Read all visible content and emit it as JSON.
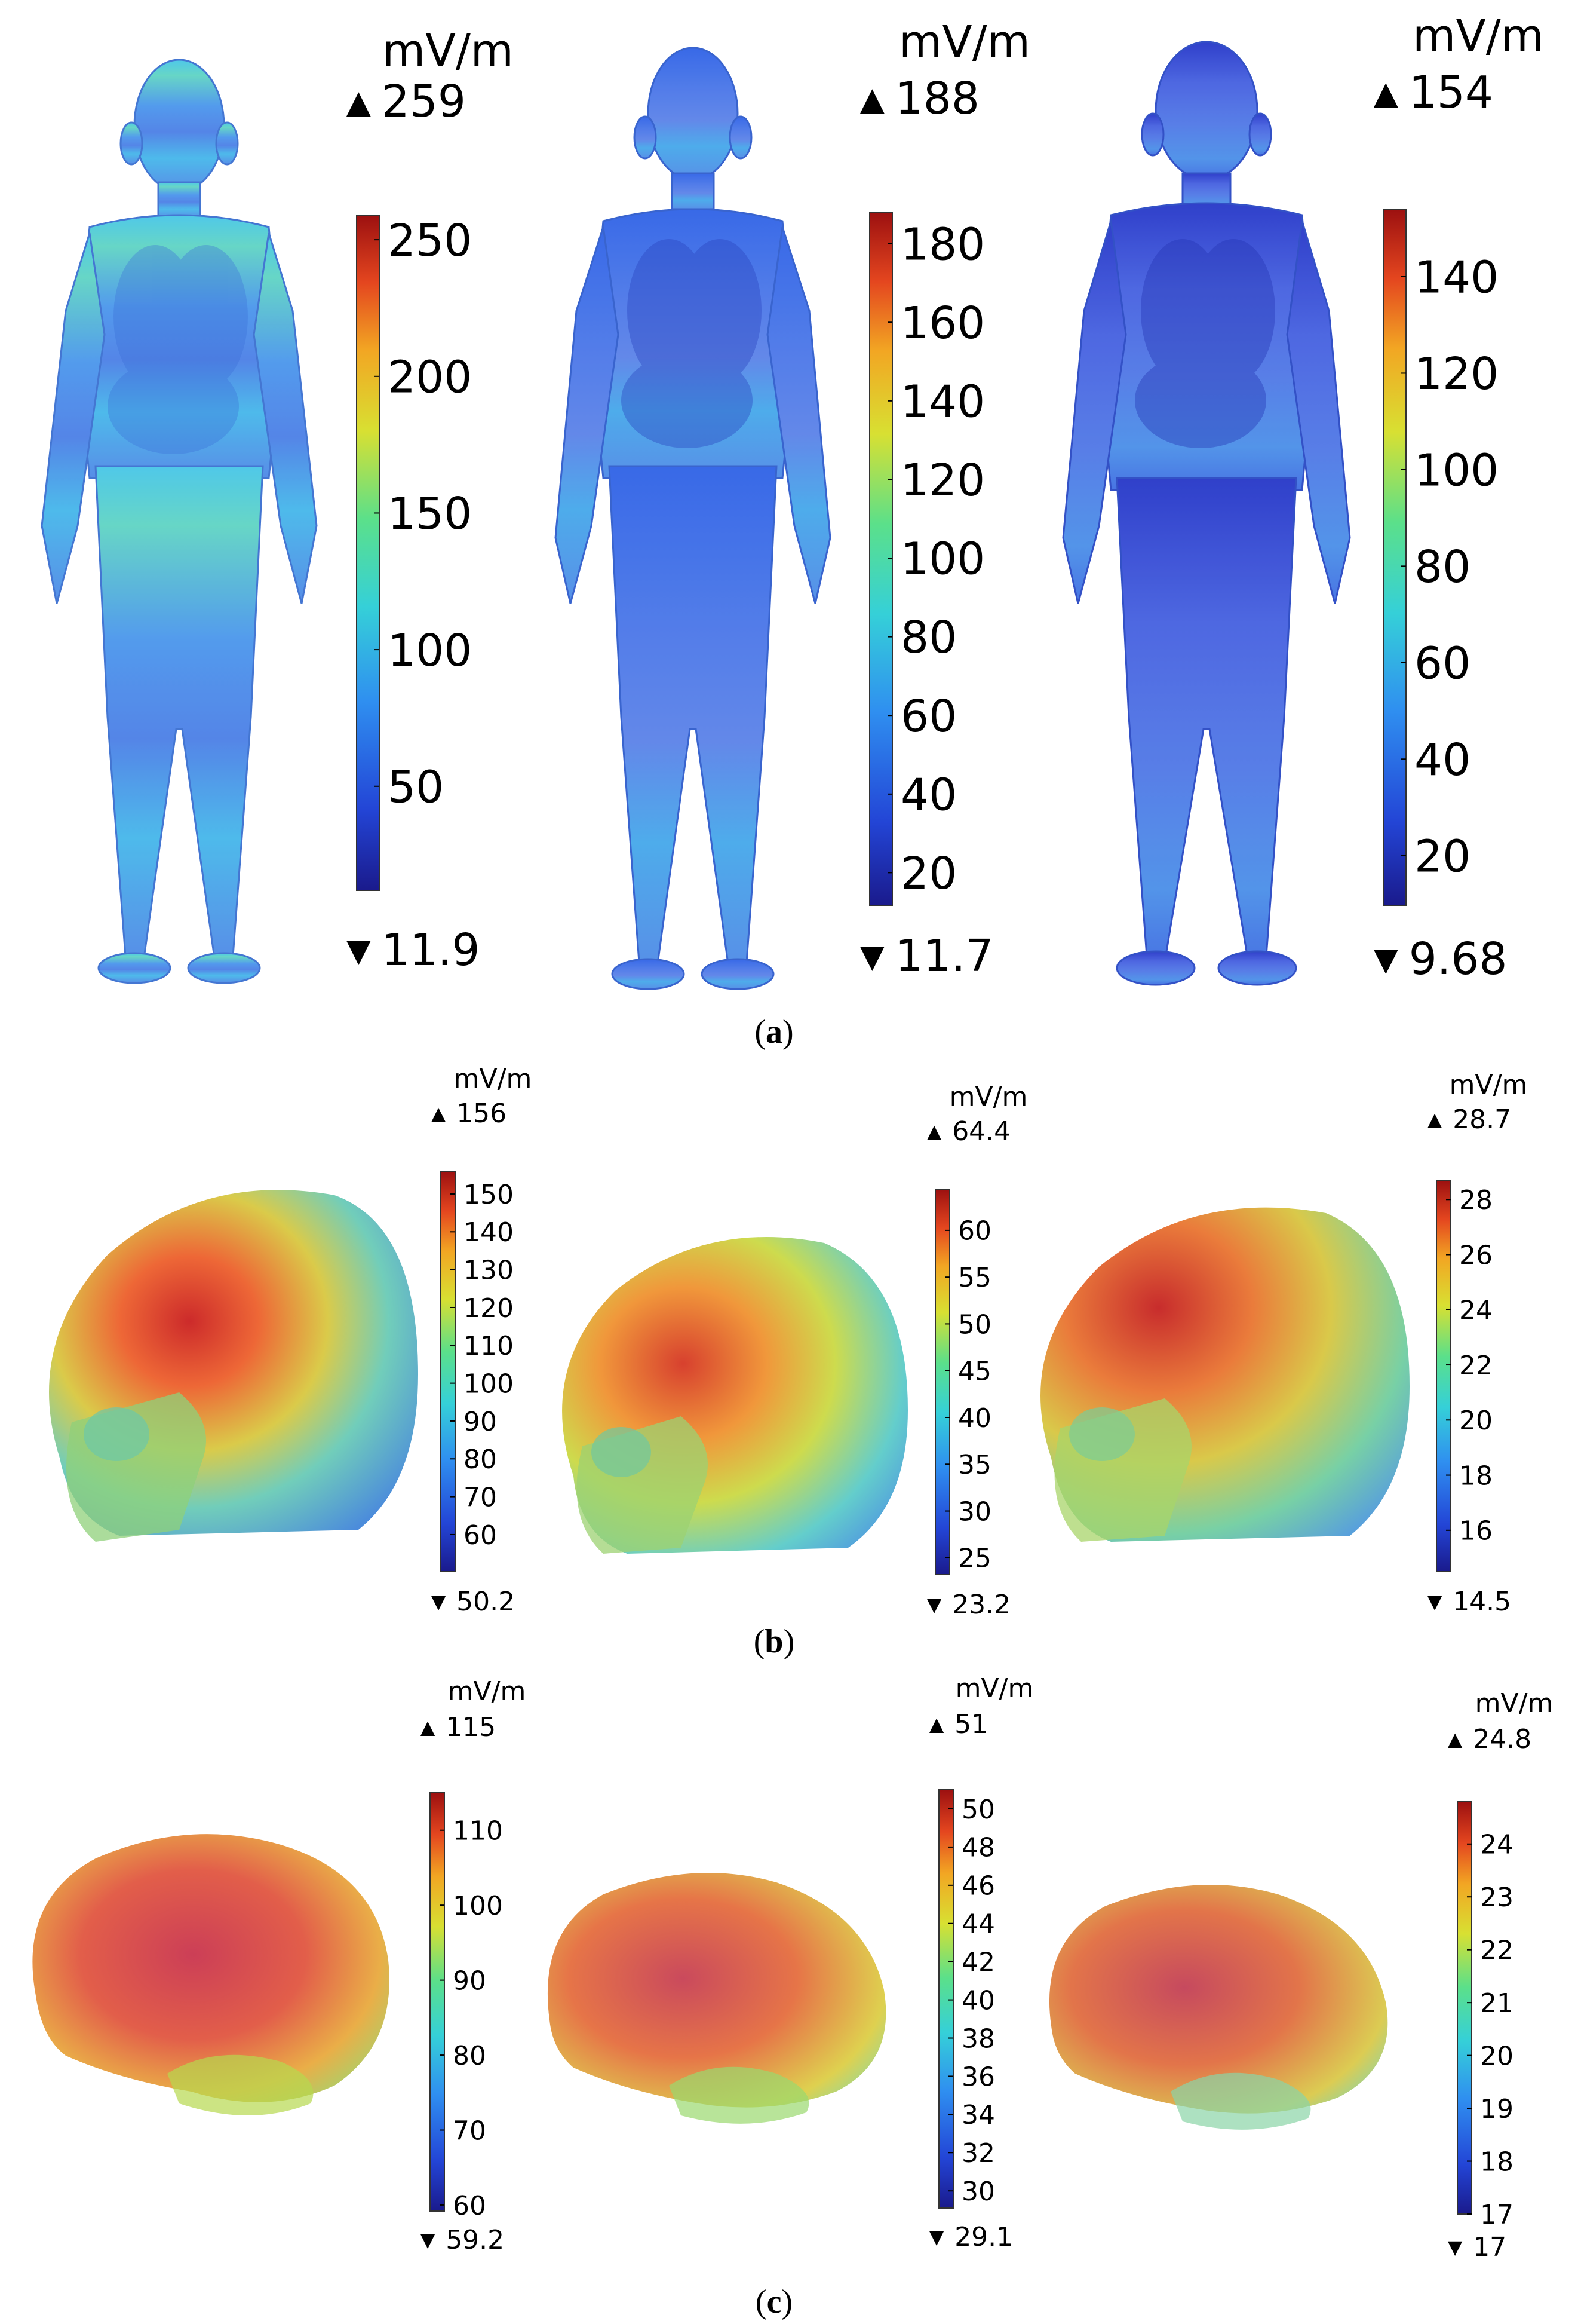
{
  "unit": "mV/m",
  "colormap": [
    "#1a1a8c",
    "#2345d6",
    "#2f8ff0",
    "#35d0d8",
    "#5be08a",
    "#d8e032",
    "#f2a623",
    "#e4461f",
    "#9c1010"
  ],
  "panels": [
    {
      "label": "a",
      "figures": [
        {
          "subject": "child-body",
          "max_label": "259",
          "min_label": "11.9",
          "ticks": [
            "250",
            "200",
            "150",
            "100",
            "50"
          ],
          "tick_values": [
            250,
            200,
            150,
            100,
            50
          ],
          "range": [
            11.9,
            259
          ]
        },
        {
          "subject": "child-body",
          "max_label": "188",
          "min_label": "11.7",
          "ticks": [
            "180",
            "160",
            "140",
            "120",
            "100",
            "80",
            "60",
            "40",
            "20"
          ],
          "tick_values": [
            180,
            160,
            140,
            120,
            100,
            80,
            60,
            40,
            20
          ],
          "range": [
            11.7,
            188
          ]
        },
        {
          "subject": "child-body",
          "max_label": "154",
          "min_label": "9.68",
          "ticks": [
            "140",
            "120",
            "100",
            "80",
            "60",
            "40",
            "20"
          ],
          "tick_values": [
            140,
            120,
            100,
            80,
            60,
            40,
            20
          ],
          "range": [
            9.68,
            154
          ]
        }
      ]
    },
    {
      "label": "b",
      "figures": [
        {
          "subject": "skull",
          "max_label": "156",
          "min_label": "50.2",
          "ticks": [
            "150",
            "140",
            "130",
            "120",
            "110",
            "100",
            "90",
            "80",
            "70",
            "60"
          ],
          "tick_values": [
            150,
            140,
            130,
            120,
            110,
            100,
            90,
            80,
            70,
            60
          ],
          "range": [
            50.2,
            156
          ]
        },
        {
          "subject": "skull",
          "max_label": "64.4",
          "min_label": "23.2",
          "ticks": [
            "60",
            "55",
            "50",
            "45",
            "40",
            "35",
            "30",
            "25"
          ],
          "tick_values": [
            60,
            55,
            50,
            45,
            40,
            35,
            30,
            25
          ],
          "range": [
            23.2,
            64.4
          ]
        },
        {
          "subject": "skull",
          "max_label": "28.7",
          "min_label": "14.5",
          "ticks": [
            "28",
            "26",
            "24",
            "22",
            "20",
            "18",
            "16"
          ],
          "tick_values": [
            28,
            26,
            24,
            22,
            20,
            18,
            16
          ],
          "range": [
            14.5,
            28.7
          ]
        }
      ]
    },
    {
      "label": "c",
      "figures": [
        {
          "subject": "brain",
          "max_label": "115",
          "min_label": "59.2",
          "ticks": [
            "110",
            "100",
            "90",
            "80",
            "70",
            "60"
          ],
          "tick_values": [
            110,
            100,
            90,
            80,
            70,
            60
          ],
          "range": [
            59.2,
            115
          ]
        },
        {
          "subject": "brain",
          "max_label": "51",
          "min_label": "29.1",
          "ticks": [
            "50",
            "48",
            "46",
            "44",
            "42",
            "40",
            "38",
            "36",
            "34",
            "32",
            "30"
          ],
          "tick_values": [
            50,
            48,
            46,
            44,
            42,
            40,
            38,
            36,
            34,
            32,
            30
          ],
          "range": [
            29.1,
            51
          ]
        },
        {
          "subject": "brain",
          "max_label": "24.8",
          "min_label": "17",
          "ticks": [
            "24",
            "23",
            "22",
            "21",
            "20",
            "19",
            "18",
            "17"
          ],
          "tick_values": [
            24,
            23,
            22,
            21,
            20,
            19,
            18,
            17
          ],
          "range": [
            17,
            24.8
          ]
        }
      ]
    }
  ]
}
